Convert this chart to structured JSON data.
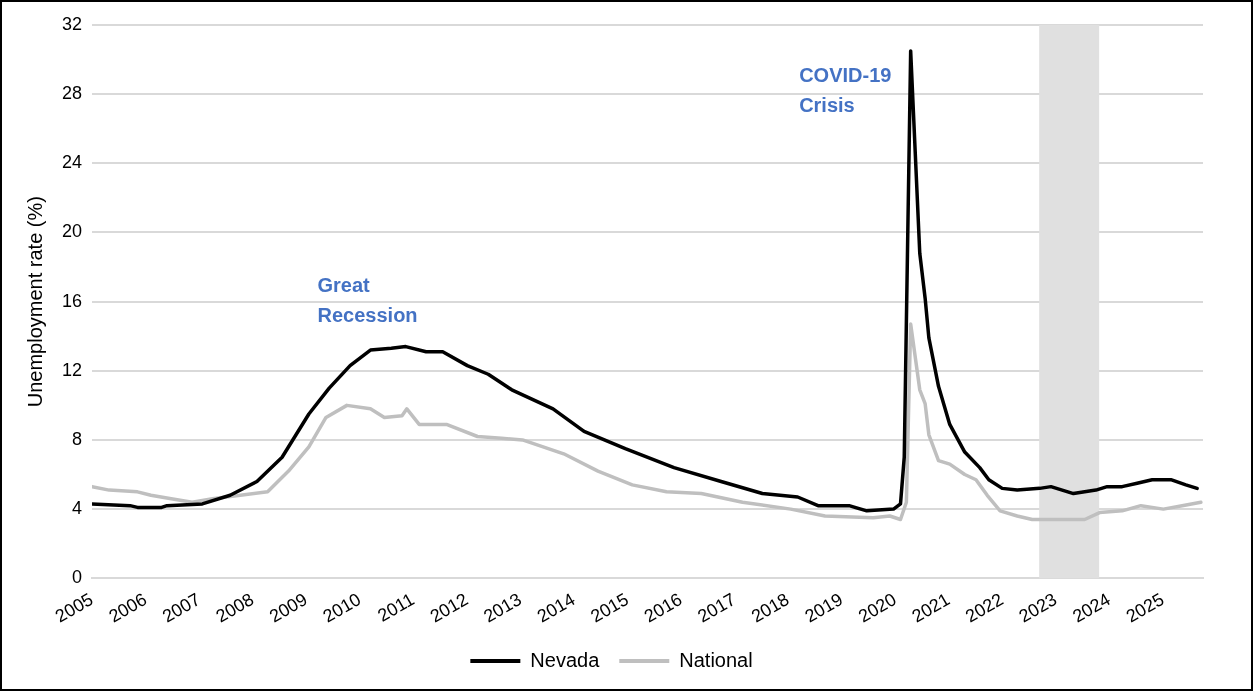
{
  "chart_data": {
    "type": "line",
    "ylabel": "Unemployment rate (%)",
    "xlim": [
      2005,
      2025.75
    ],
    "xticks": [
      2005,
      2006,
      2007,
      2008,
      2009,
      2010,
      2011,
      2012,
      2013,
      2014,
      2015,
      2016,
      2017,
      2018,
      2019,
      2020,
      2021,
      2022,
      2023,
      2024,
      2025
    ],
    "ylim": [
      0,
      32
    ],
    "yticks": [
      0,
      4,
      8,
      12,
      16,
      20,
      24,
      28,
      32
    ],
    "grid": "y",
    "legend": "bottom",
    "marker": "none",
    "line_style": "solid",
    "bands": [
      {
        "axis": "x",
        "from": 2022.69,
        "to": 2023.81,
        "color": "#e0e0e0"
      }
    ],
    "annotations": [
      "Great Recession",
      "COVID-19 Crisis"
    ],
    "series": [
      {
        "name": "Nevada",
        "color": "#000000",
        "x": [
          2005,
          2005.71,
          2005.85,
          2006.3,
          2006.4,
          2007.06,
          2007.58,
          2008.08,
          2008.55,
          2009.05,
          2009.43,
          2009.82,
          2010.2,
          2010.59,
          2010.86,
          2011.24,
          2011.55,
          2012.01,
          2012.4,
          2012.84,
          2013.61,
          2014.19,
          2014.96,
          2015.87,
          2016.75,
          2017.52,
          2018.18,
          2018.56,
          2019.14,
          2019.47,
          2019.97,
          2020.1,
          2020.17,
          2020.29,
          2020.46,
          2020.56,
          2020.63,
          2020.81,
          2021.02,
          2021.3,
          2021.58,
          2021.75,
          2022,
          2022.28,
          2022.7,
          2022.91,
          2023.33,
          2023.75,
          2023.96,
          2024.24,
          2024.52,
          2024.8,
          2025.15,
          2025.43,
          2025.64
        ],
        "values": [
          4.3,
          4.2,
          4.1,
          4.1,
          4.2,
          4.3,
          4.8,
          5.6,
          7.0,
          9.5,
          11.0,
          12.3,
          13.2,
          13.3,
          13.4,
          13.1,
          13.1,
          12.3,
          11.8,
          10.9,
          9.8,
          8.5,
          7.5,
          6.4,
          5.6,
          4.9,
          4.7,
          4.2,
          4.2,
          3.9,
          4.0,
          4.3,
          7.0,
          30.5,
          18.8,
          16.2,
          13.9,
          11.1,
          8.9,
          7.3,
          6.4,
          5.7,
          5.2,
          5.1,
          5.2,
          5.3,
          4.9,
          5.1,
          5.3,
          5.3,
          5.5,
          5.7,
          5.7,
          5.4,
          5.2
        ]
      },
      {
        "name": "National",
        "color": "#bfbfbf",
        "x": [
          2005,
          2005.32,
          2005.85,
          2006.1,
          2006.48,
          2006.87,
          2007.25,
          2007.77,
          2008.28,
          2008.67,
          2009.05,
          2009.37,
          2009.76,
          2010.2,
          2010.46,
          2010.79,
          2010.88,
          2011.11,
          2011.62,
          2012.2,
          2012.65,
          2013.04,
          2013.81,
          2014.45,
          2015.09,
          2015.73,
          2016.38,
          2017.15,
          2018.05,
          2018.69,
          2019.59,
          2019.9,
          2020.1,
          2020.21,
          2020.29,
          2020.46,
          2020.56,
          2020.63,
          2020.81,
          2021.02,
          2021.3,
          2021.51,
          2021.72,
          2021.96,
          2022.28,
          2022.56,
          2023.12,
          2023.54,
          2023.82,
          2024.24,
          2024.59,
          2025.01,
          2025.36,
          2025.71
        ],
        "values": [
          5.3,
          5.1,
          5.0,
          4.8,
          4.6,
          4.4,
          4.6,
          4.8,
          5.0,
          6.2,
          7.6,
          9.3,
          10.0,
          9.8,
          9.3,
          9.4,
          9.8,
          8.9,
          8.9,
          8.2,
          8.1,
          8.0,
          7.2,
          6.2,
          5.4,
          5.0,
          4.9,
          4.4,
          4.0,
          3.6,
          3.5,
          3.6,
          3.4,
          4.4,
          14.7,
          10.9,
          10.1,
          8.3,
          6.8,
          6.6,
          6.0,
          5.7,
          4.8,
          3.9,
          3.6,
          3.4,
          3.4,
          3.4,
          3.8,
          3.9,
          4.2,
          4.0,
          4.2,
          4.4
        ]
      }
    ]
  }
}
